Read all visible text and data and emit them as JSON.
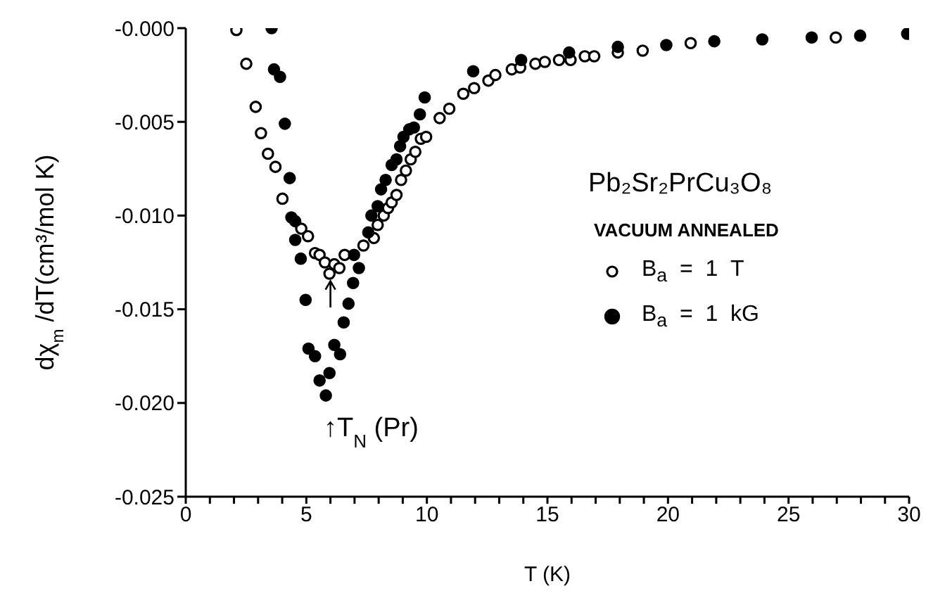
{
  "chart_data": {
    "type": "scatter",
    "xlabel": "T (K)",
    "ylabel": "dχ$_{m}$/dT(cm³/mol K)",
    "legend_title": "VACUUM ANNEALED",
    "annotations": [
      "Pb₂Sr₂PrCu₃O₈",
      "↑T$_{N}$(Pr)"
    ],
    "series": [
      {
        "name": "B$_{a}$ = 1 T",
        "color": "#000000",
        "x": [
          2.1,
          2.51,
          2.9,
          3.12,
          3.41,
          3.72,
          4.01,
          4.79,
          5.07,
          5.36,
          5.55,
          5.77,
          5.96,
          6.16,
          6.37,
          6.59,
          7.37,
          7.8,
          7.96,
          8.21,
          8.39,
          8.54,
          8.74,
          8.93,
          9.13,
          9.33,
          9.52,
          9.75,
          9.97,
          10.53,
          10.93,
          11.51,
          11.96,
          12.55,
          12.84,
          13.52,
          13.87,
          14.5,
          14.89,
          15.48,
          15.96,
          16.55,
          16.94,
          17.92,
          18.95,
          20.94,
          26.96
        ],
        "values": [
          -0.0001,
          -0.0019,
          -0.0042,
          -0.0056,
          -0.0067,
          -0.0074,
          -0.0091,
          -0.0107,
          -0.0111,
          -0.012,
          -0.0121,
          -0.0125,
          -0.0131,
          -0.0126,
          -0.0128,
          -0.0121,
          -0.0116,
          -0.0112,
          -0.0105,
          -0.01,
          -0.0096,
          -0.0093,
          -0.0089,
          -0.0081,
          -0.0076,
          -0.007,
          -0.0066,
          -0.0059,
          -0.0058,
          -0.0048,
          -0.0043,
          -0.0035,
          -0.0032,
          -0.0028,
          -0.0025,
          -0.0022,
          -0.0021,
          -0.0019,
          -0.0018,
          -0.0017,
          -0.0017,
          -0.0015,
          -0.0015,
          -0.0013,
          -0.0012,
          -0.0008,
          -0.0005
        ]
      },
      {
        "name": "B$_{a}$ = 1 kG",
        "color": "#000000",
        "x": [
          3.56,
          3.66,
          3.91,
          4.11,
          4.31,
          4.38,
          4.54,
          4.54,
          4.77,
          4.97,
          5.09,
          5.36,
          5.55,
          5.81,
          5.96,
          6.16,
          6.4,
          6.55,
          6.75,
          6.94,
          7.18,
          6.98,
          7.57,
          7.7,
          7.96,
          8.1,
          8.29,
          8.54,
          8.74,
          8.89,
          9.03,
          9.27,
          9.46,
          9.71,
          9.91,
          11.92,
          13.91,
          15.9,
          17.92,
          19.93,
          21.92,
          23.91,
          25.96,
          27.97,
          29.92
        ],
        "values": [
          0.0,
          -0.0022,
          -0.0026,
          -0.0051,
          -0.008,
          -0.0101,
          -0.0103,
          -0.0113,
          -0.0123,
          -0.0145,
          -0.0171,
          -0.0175,
          -0.0188,
          -0.0196,
          -0.0184,
          -0.0169,
          -0.0174,
          -0.0157,
          -0.0147,
          -0.0136,
          -0.0128,
          -0.0121,
          -0.0109,
          -0.01,
          -0.0095,
          -0.0086,
          -0.0081,
          -0.0073,
          -0.007,
          -0.0063,
          -0.0058,
          -0.0054,
          -0.0053,
          -0.0046,
          -0.0037,
          -0.0023,
          -0.0017,
          -0.0013,
          -0.001,
          -0.0009,
          -0.0007,
          -0.0006,
          -0.0005,
          -0.0004,
          -0.0003
        ]
      }
    ],
    "xlim": [
      0,
      30
    ],
    "xticks": [
      0,
      {
        "value": 1,
        "label": null
      },
      {
        "value": 2,
        "label": null
      },
      {
        "value": 3,
        "label": null
      },
      {
        "value": 4,
        "label": null
      },
      5,
      {
        "value": 6,
        "label": null
      },
      {
        "value": 7,
        "label": null
      },
      {
        "value": 8,
        "label": null
      },
      {
        "value": 9,
        "label": null
      },
      10,
      {
        "value": 11,
        "label": null
      },
      {
        "value": 12,
        "label": null
      },
      {
        "value": 13,
        "label": null
      },
      {
        "value": 14,
        "label": null
      },
      15,
      {
        "value": 16,
        "label": null
      },
      {
        "value": 17,
        "label": null
      },
      {
        "value": 18,
        "label": null
      },
      {
        "value": 19,
        "label": null
      },
      20,
      {
        "value": 21,
        "label": null
      },
      {
        "value": 22,
        "label": null
      },
      {
        "value": 23,
        "label": null
      },
      {
        "value": 24,
        "label": null
      },
      25,
      {
        "value": 26,
        "label": null
      },
      {
        "value": 27,
        "label": null
      },
      {
        "value": 28,
        "label": null
      },
      {
        "value": 29,
        "label": null
      },
      30
    ],
    "ylim": [
      -0.025,
      0
    ],
    "yticks": [
      {
        "value": 0,
        "label": "-0.000"
      },
      {
        "value": -0.005,
        "label": "-0.005"
      },
      {
        "value": -0.01,
        "label": "-0.010"
      },
      {
        "value": -0.015,
        "label": "-0.015"
      },
      {
        "value": -0.02,
        "label": "-0.020"
      },
      {
        "value": -0.025,
        "label": "-0.025"
      }
    ],
    "grid": false,
    "legend": "right",
    "marker": "circle"
  }
}
